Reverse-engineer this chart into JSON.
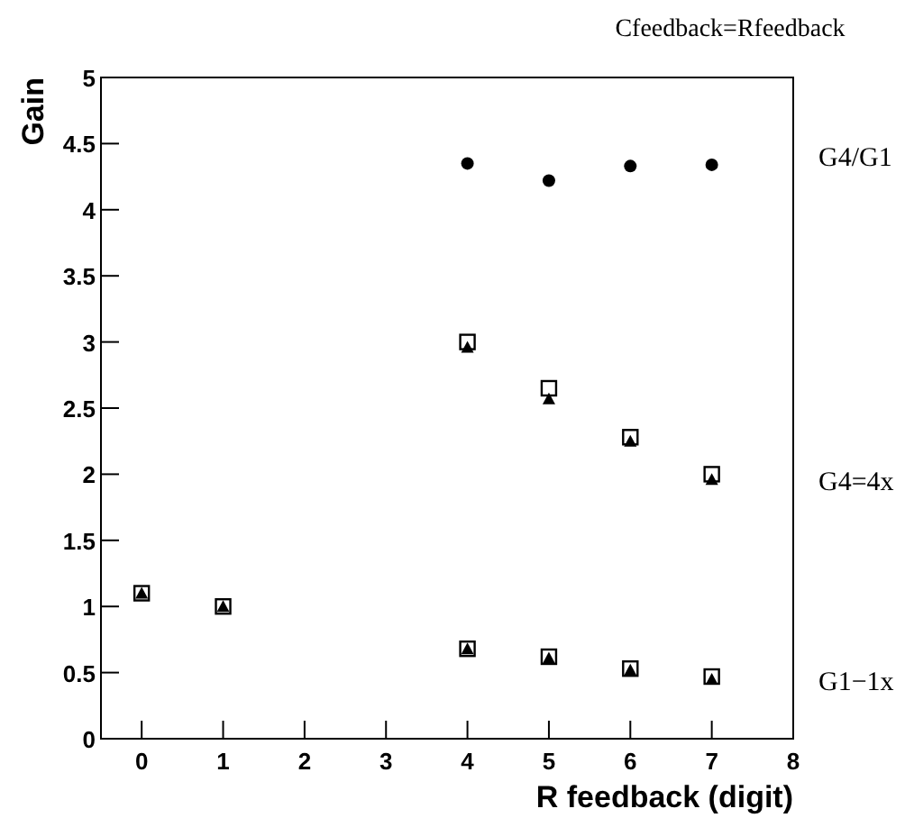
{
  "chart_data": {
    "type": "scatter",
    "title": "Cfeedback=Rfeedback",
    "xlabel": "R feedback (digit)",
    "ylabel": "Gain",
    "xlim": [
      -0.5,
      8
    ],
    "xticks": [
      0,
      1,
      2,
      3,
      4,
      5,
      6,
      7,
      8
    ],
    "ylim": [
      0,
      5
    ],
    "yticks": [
      0,
      0.5,
      1,
      1.5,
      2,
      2.5,
      3,
      3.5,
      4,
      4.5,
      5
    ],
    "grid": false,
    "series": [
      {
        "color": "#000000",
        "marker": "circle",
        "x": [
          4,
          5,
          6,
          7
        ],
        "values": [
          4.35,
          4.22,
          4.33,
          4.34
        ]
      },
      {
        "color": "#000000",
        "marker": "square",
        "x": [
          0,
          1,
          4,
          5,
          6,
          7,
          4,
          5,
          6,
          7
        ],
        "values": [
          1.1,
          1.0,
          3.0,
          2.65,
          2.28,
          2.0,
          0.68,
          0.62,
          0.53,
          0.47
        ]
      },
      {
        "color": "#000000",
        "marker": "triangle",
        "x": [
          0,
          1,
          4,
          5,
          6,
          7,
          4,
          5,
          6,
          7
        ],
        "values": [
          1.1,
          1.0,
          2.96,
          2.57,
          2.25,
          1.96,
          0.68,
          0.61,
          0.52,
          0.45
        ]
      }
    ],
    "annotations": [
      "G4/G1",
      "G4=4x",
      "G1−1x"
    ]
  }
}
